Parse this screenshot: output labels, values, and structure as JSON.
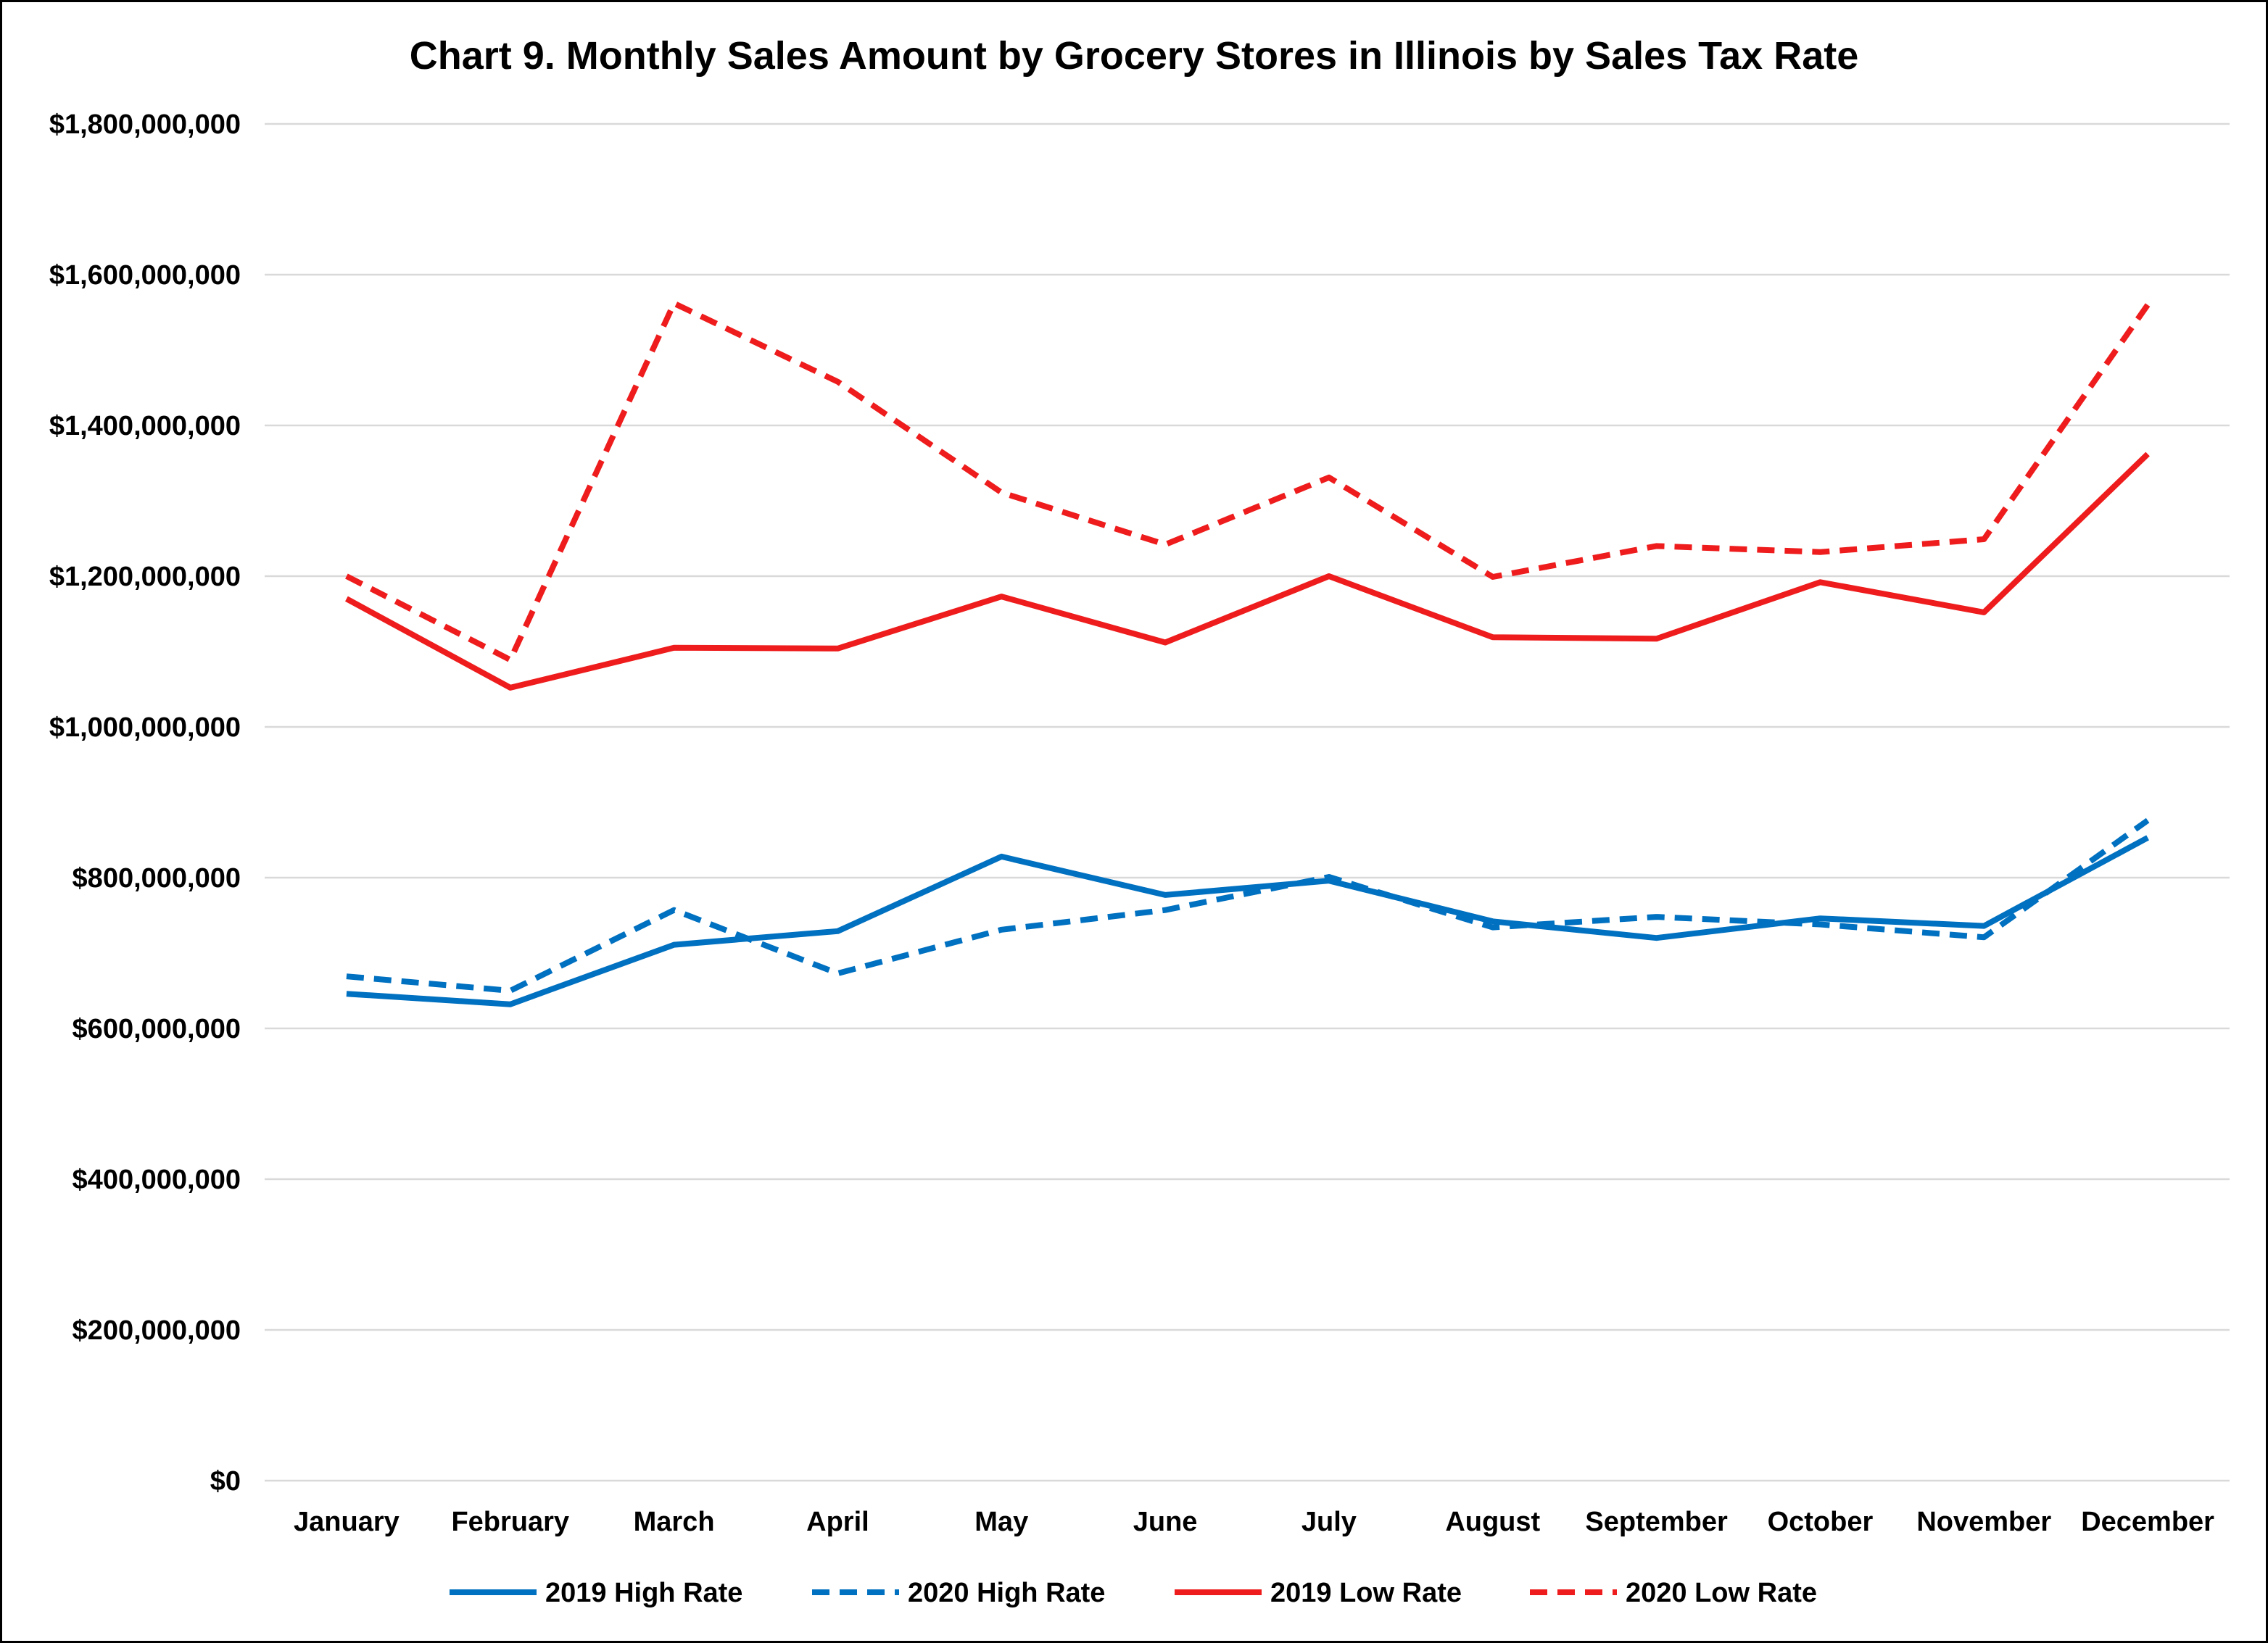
{
  "chart_data": {
    "type": "line",
    "title": "Chart 9. Monthly Sales Amount by Grocery Stores in Illinois by Sales Tax Rate",
    "categories": [
      "January",
      "February",
      "March",
      "April",
      "May",
      "June",
      "July",
      "August",
      "September",
      "October",
      "November",
      "December"
    ],
    "ylim": [
      0,
      1800000000
    ],
    "yticks": [
      0,
      200000000,
      400000000,
      600000000,
      800000000,
      1000000000,
      1200000000,
      1400000000,
      1600000000,
      1800000000
    ],
    "ytick_labels": [
      "$0",
      "$200,000,000",
      "$400,000,000",
      "$600,000,000",
      "$800,000,000",
      "$1,000,000,000",
      "$1,200,000,000",
      "$1,400,000,000",
      "$1,600,000,000",
      "$1,800,000,000"
    ],
    "grid": true,
    "legend_position": "bottom",
    "series": [
      {
        "name": "2019 High Rate",
        "color": "#0070c0",
        "dashed": false,
        "values": [
          646000000,
          632000000,
          711000000,
          729000000,
          828000000,
          777000000,
          796000000,
          742000000,
          720000000,
          746000000,
          736000000,
          853000000
        ]
      },
      {
        "name": "2020 High Rate",
        "color": "#0070c0",
        "dashed": true,
        "values": [
          669000000,
          650000000,
          757000000,
          673000000,
          731000000,
          757000000,
          801000000,
          734000000,
          748000000,
          738000000,
          721000000,
          876000000
        ]
      },
      {
        "name": "2019 Low Rate",
        "color": "#ee1c1c",
        "dashed": false,
        "values": [
          1170000000,
          1052000000,
          1105000000,
          1104000000,
          1173000000,
          1112000000,
          1200000000,
          1119000000,
          1117000000,
          1192000000,
          1152000000,
          1362000000
        ]
      },
      {
        "name": "2020 Low Rate",
        "color": "#ee1c1c",
        "dashed": true,
        "values": [
          1200000000,
          1089000000,
          1562000000,
          1458000000,
          1311000000,
          1242000000,
          1331000000,
          1199000000,
          1240000000,
          1232000000,
          1249000000,
          1560000000
        ]
      }
    ]
  }
}
